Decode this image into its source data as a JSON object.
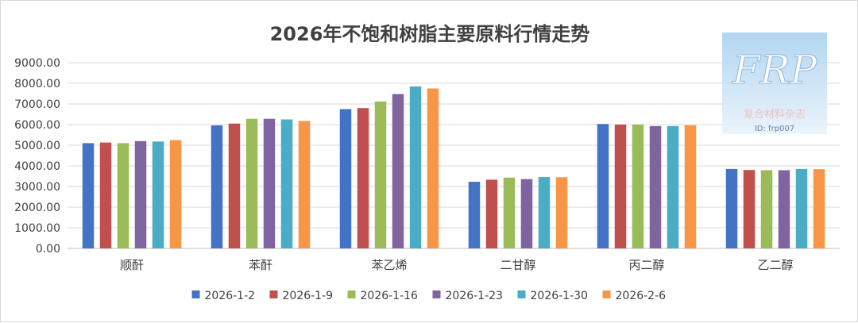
{
  "chart_data": {
    "type": "bar",
    "title": "2026年不饱和树脂主要原料行情走势",
    "xlabel": "",
    "ylabel": "",
    "ylim": [
      0,
      9000
    ],
    "yticks": [
      "0.00",
      "1000.00",
      "2000.00",
      "3000.00",
      "4000.00",
      "5000.00",
      "6000.00",
      "7000.00",
      "8000.00",
      "9000.00"
    ],
    "grid": true,
    "legend_position": "bottom",
    "categories": [
      "顺酐",
      "苯酐",
      "苯乙烯",
      "二甘醇",
      "丙二醇",
      "乙二醇"
    ],
    "series": [
      {
        "name": "2026-1-2",
        "color": "#4472c4",
        "values": [
          5100,
          5960,
          6750,
          3230,
          6030,
          3850
        ]
      },
      {
        "name": "2026-1-9",
        "color": "#c0504d",
        "values": [
          5130,
          6050,
          6800,
          3330,
          6000,
          3800
        ]
      },
      {
        "name": "2026-1-16",
        "color": "#9bbb59",
        "values": [
          5100,
          6280,
          7120,
          3430,
          6000,
          3790
        ]
      },
      {
        "name": "2026-1-23",
        "color": "#8064a2",
        "values": [
          5200,
          6280,
          7480,
          3360,
          5930,
          3790
        ]
      },
      {
        "name": "2026-1-30",
        "color": "#4bacc6",
        "values": [
          5180,
          6250,
          7850,
          3460,
          5930,
          3850
        ]
      },
      {
        "name": "2026-2-6",
        "color": "#f79646",
        "values": [
          5250,
          6180,
          7750,
          3450,
          5970,
          3840
        ]
      }
    ]
  },
  "watermark": {
    "logo_text": "FRP",
    "subtitle": "复合材料杂志",
    "id_text": "ID: frp007"
  }
}
